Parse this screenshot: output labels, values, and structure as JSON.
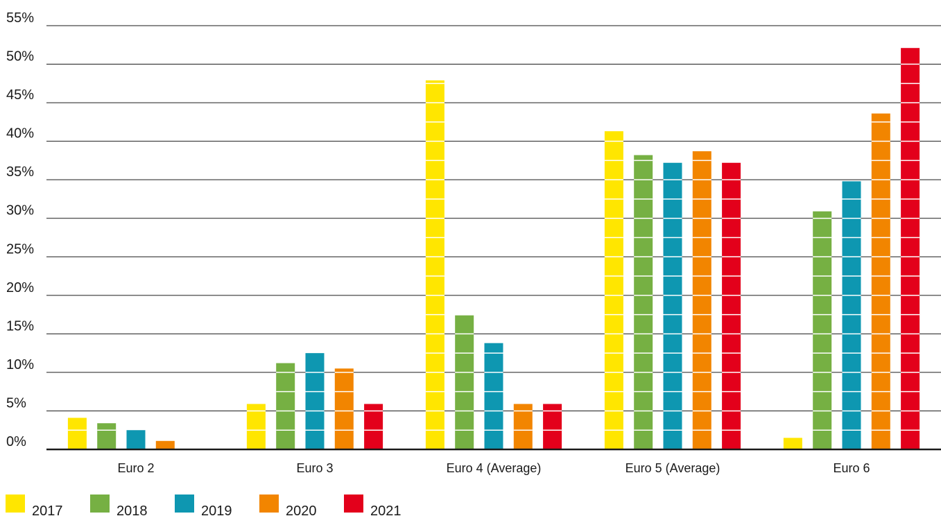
{
  "chart_data": {
    "type": "bar",
    "title": "",
    "xlabel": "",
    "ylabel": "",
    "ylim": [
      0,
      55
    ],
    "y_ticks": [
      "0%",
      "5%",
      "10%",
      "15%",
      "20%",
      "25%",
      "30%",
      "35%",
      "40%",
      "45%",
      "50%",
      "55%"
    ],
    "y_tick_values": [
      0,
      5,
      10,
      15,
      20,
      25,
      30,
      35,
      40,
      45,
      50,
      55
    ],
    "grid": true,
    "legend_position": "bottom-left",
    "categories": [
      "Euro 2",
      "Euro 3",
      "Euro 4 (Average)",
      "Euro 5 (Average)",
      "Euro 6"
    ],
    "series": [
      {
        "name": "2017",
        "color": "#ffe600",
        "values": [
          4.1,
          5.9,
          47.9,
          41.3,
          1.5
        ]
      },
      {
        "name": "2018",
        "color": "#76b043",
        "values": [
          3.4,
          11.2,
          17.4,
          38.2,
          30.9
        ]
      },
      {
        "name": "2019",
        "color": "#0e97b1",
        "values": [
          2.5,
          12.5,
          13.8,
          37.2,
          34.8
        ]
      },
      {
        "name": "2020",
        "color": "#f28500",
        "values": [
          1.1,
          10.5,
          5.9,
          38.7,
          43.6
        ]
      },
      {
        "name": "2021",
        "color": "#e3001b",
        "values": [
          0,
          5.9,
          5.9,
          37.2,
          52.1
        ]
      }
    ],
    "bar_style": "segmented"
  }
}
